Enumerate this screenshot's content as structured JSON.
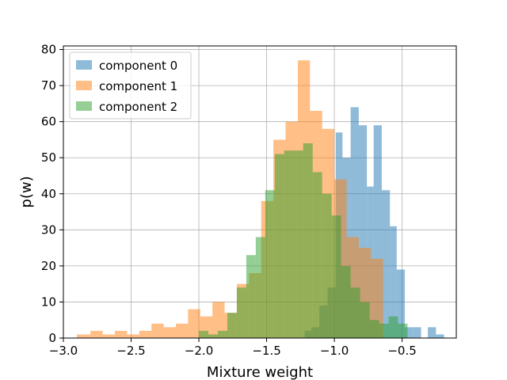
{
  "chart_data": {
    "type": "histogram",
    "xlabel": "Mixture weight",
    "ylabel": "p(w)",
    "xlim": [
      -3.0,
      -0.1
    ],
    "ylim": [
      0,
      81
    ],
    "xticks": [
      -3.0,
      -2.5,
      -2.0,
      -1.5,
      -1.0,
      -0.5
    ],
    "xtick_labels": [
      "−3.0",
      "−2.5",
      "−2.0",
      "−1.5",
      "−1.0",
      "−0.5"
    ],
    "yticks": [
      0,
      10,
      20,
      30,
      40,
      50,
      60,
      70,
      80
    ],
    "ytick_labels": [
      "0",
      "10",
      "20",
      "30",
      "40",
      "50",
      "60",
      "70",
      "80"
    ],
    "grid": true,
    "legend_position": "top-left",
    "alpha": 0.5,
    "series": [
      {
        "name": "component 0",
        "color": "#1f77b4",
        "bins": [
          [
            -1.22,
            -1.17,
            2
          ],
          [
            -1.17,
            -1.11,
            3
          ],
          [
            -1.11,
            -1.05,
            9
          ],
          [
            -1.05,
            -0.99,
            14
          ],
          [
            -0.99,
            -0.94,
            57
          ],
          [
            -0.94,
            -0.88,
            50
          ],
          [
            -0.88,
            -0.82,
            64
          ],
          [
            -0.82,
            -0.76,
            59
          ],
          [
            -0.76,
            -0.71,
            42
          ],
          [
            -0.71,
            -0.65,
            59
          ],
          [
            -0.65,
            -0.59,
            41
          ],
          [
            -0.59,
            -0.54,
            31
          ],
          [
            -0.54,
            -0.48,
            19
          ],
          [
            -0.48,
            -0.42,
            3
          ],
          [
            -0.42,
            -0.36,
            3
          ],
          [
            -0.36,
            -0.31,
            0
          ],
          [
            -0.31,
            -0.25,
            3
          ],
          [
            -0.25,
            -0.19,
            1
          ]
        ]
      },
      {
        "name": "component 1",
        "color": "#ff7f0e",
        "bins": [
          [
            -2.9,
            -2.8,
            1
          ],
          [
            -2.8,
            -2.71,
            2
          ],
          [
            -2.71,
            -2.62,
            1
          ],
          [
            -2.62,
            -2.53,
            2
          ],
          [
            -2.53,
            -2.44,
            1
          ],
          [
            -2.44,
            -2.35,
            2
          ],
          [
            -2.35,
            -2.26,
            4
          ],
          [
            -2.26,
            -2.17,
            3
          ],
          [
            -2.17,
            -2.08,
            4
          ],
          [
            -2.08,
            -1.99,
            8
          ],
          [
            -1.99,
            -1.9,
            6
          ],
          [
            -1.9,
            -1.81,
            10
          ],
          [
            -1.81,
            -1.72,
            7
          ],
          [
            -1.72,
            -1.63,
            15
          ],
          [
            -1.63,
            -1.54,
            18
          ],
          [
            -1.54,
            -1.45,
            38
          ],
          [
            -1.45,
            -1.36,
            55
          ],
          [
            -1.36,
            -1.27,
            60
          ],
          [
            -1.27,
            -1.18,
            77
          ],
          [
            -1.18,
            -1.09,
            63
          ],
          [
            -1.09,
            -1.0,
            58
          ],
          [
            -1.0,
            -0.91,
            44
          ],
          [
            -0.91,
            -0.82,
            28
          ],
          [
            -0.82,
            -0.73,
            25
          ],
          [
            -0.73,
            -0.64,
            22
          ]
        ]
      },
      {
        "name": "component 2",
        "color": "#2ca02c",
        "bins": [
          [
            -2.0,
            -1.93,
            2
          ],
          [
            -1.93,
            -1.86,
            1
          ],
          [
            -1.86,
            -1.79,
            2
          ],
          [
            -1.79,
            -1.72,
            7
          ],
          [
            -1.72,
            -1.65,
            14
          ],
          [
            -1.65,
            -1.58,
            23
          ],
          [
            -1.58,
            -1.51,
            28
          ],
          [
            -1.51,
            -1.44,
            41
          ],
          [
            -1.44,
            -1.37,
            51
          ],
          [
            -1.37,
            -1.3,
            52
          ],
          [
            -1.3,
            -1.23,
            52
          ],
          [
            -1.23,
            -1.16,
            54
          ],
          [
            -1.16,
            -1.09,
            46
          ],
          [
            -1.09,
            -1.02,
            40
          ],
          [
            -1.02,
            -0.95,
            34
          ],
          [
            -0.95,
            -0.88,
            20
          ],
          [
            -0.88,
            -0.81,
            14
          ],
          [
            -0.81,
            -0.74,
            10
          ],
          [
            -0.74,
            -0.67,
            5
          ],
          [
            -0.67,
            -0.6,
            4
          ],
          [
            -0.6,
            -0.53,
            6
          ],
          [
            -0.53,
            -0.46,
            4
          ]
        ]
      }
    ]
  }
}
